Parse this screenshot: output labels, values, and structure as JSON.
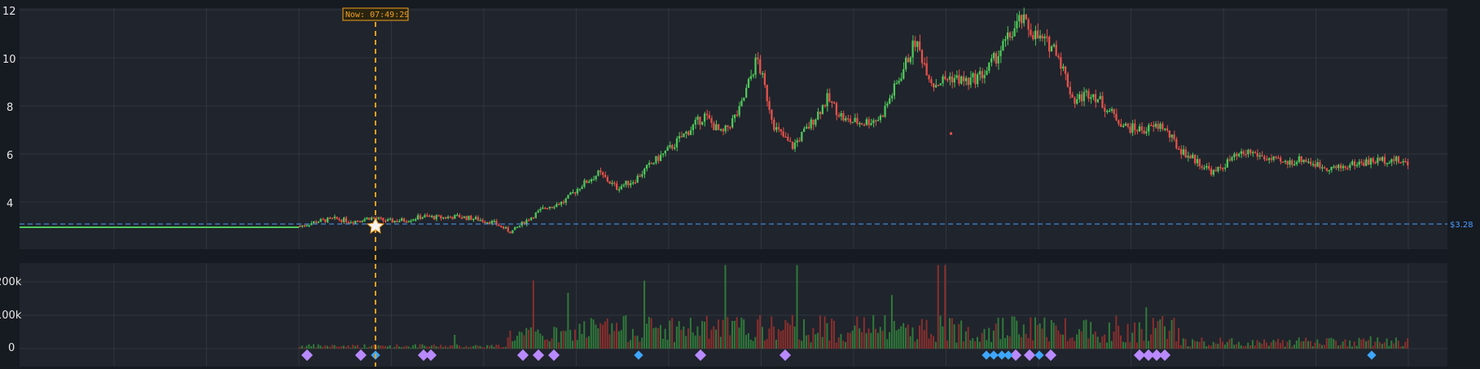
{
  "chart_data": [
    {
      "type": "candlestick",
      "title": "",
      "ylim": [
        2.0,
        12.4
      ],
      "y_ticks": [
        "4",
        "6",
        "8",
        "10",
        "12"
      ],
      "grid": true,
      "colors": {
        "up": "#4ec95b",
        "down": "#e8524a",
        "background": "#20242c",
        "grid": "#30353e"
      },
      "pre_open_line": {
        "value": 2.95,
        "color": "#4ec95b"
      },
      "reference_line": {
        "value": 3.28,
        "label": "$3.28",
        "color": "#4a9eff",
        "style": "dashed"
      },
      "now_marker": {
        "label": "Now: 07:49:29",
        "color": "#f0a020",
        "value": 3.3
      },
      "price_path_approx": [
        3.0,
        3.2,
        3.3,
        3.2,
        3.35,
        3.2,
        3.25,
        3.4,
        3.35,
        3.4,
        3.3,
        3.15,
        2.75,
        3.3,
        3.8,
        4.0,
        4.7,
        5.2,
        4.6,
        4.9,
        5.6,
        6.2,
        6.9,
        7.6,
        6.8,
        7.8,
        10.0,
        7.1,
        6.3,
        7.2,
        8.3,
        7.4,
        7.3,
        7.5,
        9.0,
        10.7,
        8.9,
        9.2,
        9.0,
        9.4,
        10.5,
        11.6,
        10.8,
        10.4,
        8.2,
        8.6,
        7.8,
        7.1,
        7.0,
        7.2,
        6.2,
        5.7,
        5.2,
        5.8,
        6.1,
        5.8,
        5.6,
        5.8,
        5.5,
        5.4,
        5.6,
        5.7,
        5.8,
        5.6
      ],
      "outlier_point": 6.85
    },
    {
      "type": "bar",
      "title": "",
      "series": "volume",
      "y_ticks": [
        "0",
        "100k",
        "200k"
      ],
      "ylim": [
        0,
        260000
      ],
      "grid": true
    }
  ],
  "event_markers": {
    "purple_count": 16,
    "blue_count": 8,
    "colors": {
      "purple": "#b98aff",
      "blue": "#3ea6ff"
    }
  }
}
